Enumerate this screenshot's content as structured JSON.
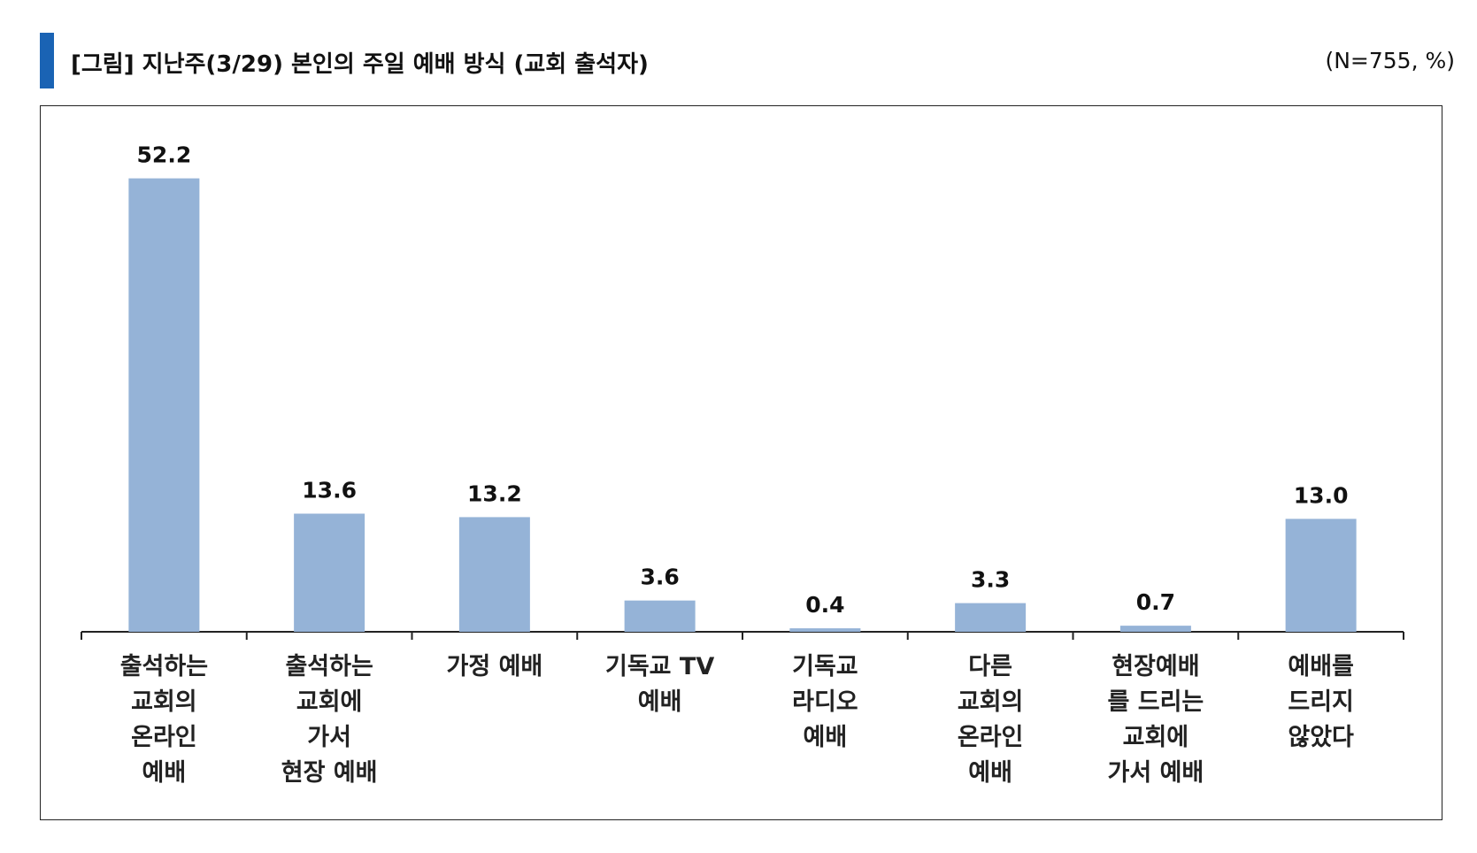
{
  "header": {
    "title": "[그림] 지난주(3/29) 본인의 주일 예배 방식 (교회 출석자)",
    "note": "(N=755, %)"
  },
  "colors": {
    "bar": "#95b3d7",
    "accent": "#1a63b4",
    "axis": "#222222"
  },
  "chart_data": {
    "type": "bar",
    "title": "[그림] 지난주(3/29) 본인의 주일 예배 방식 (교회 출석자)",
    "xlabel": "",
    "ylabel": "",
    "ylim": [
      0,
      60
    ],
    "grid": false,
    "legend": "none",
    "categories": [
      [
        "출석하는",
        "교회의",
        "온라인",
        "예배"
      ],
      [
        "출석하는",
        "교회에",
        "가서",
        "현장 예배"
      ],
      [
        "가정 예배"
      ],
      [
        "기독교 TV",
        "예배"
      ],
      [
        "기독교",
        "라디오",
        "예배"
      ],
      [
        "다른",
        "교회의",
        "온라인",
        "예배"
      ],
      [
        "현장예배",
        "를 드리는",
        "교회에",
        "가서 예배"
      ],
      [
        "예배를",
        "드리지",
        "않았다"
      ]
    ],
    "values": [
      52.2,
      13.6,
      13.2,
      3.6,
      0.4,
      3.3,
      0.7,
      13.0
    ],
    "value_labels": [
      "52.2",
      "13.6",
      "13.2",
      "3.6",
      "0.4",
      "3.3",
      "0.7",
      "13.0"
    ]
  }
}
